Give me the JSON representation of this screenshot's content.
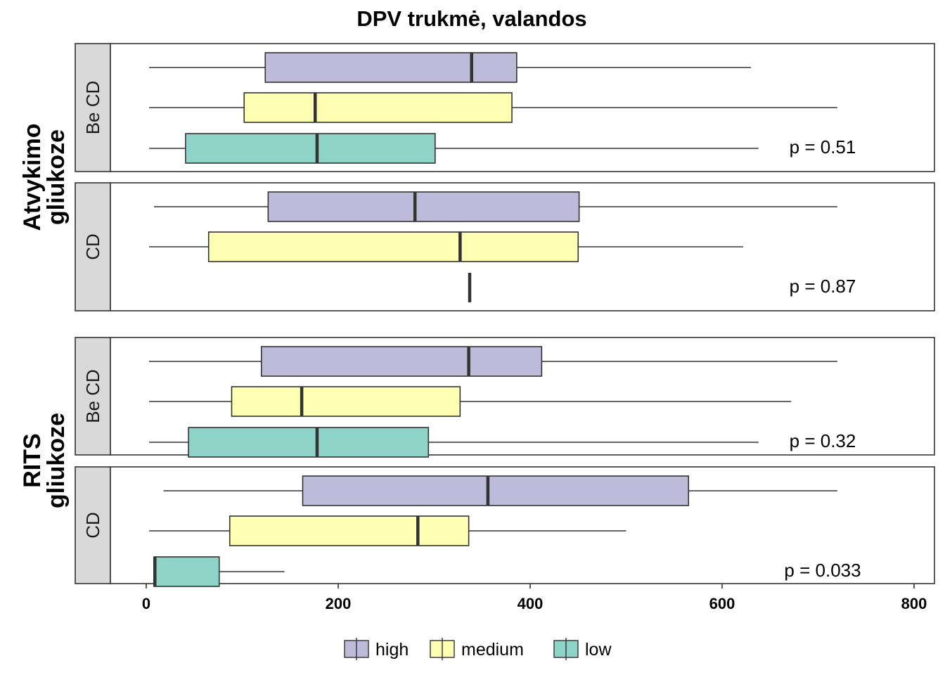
{
  "chart_data": {
    "type": "boxplot",
    "orientation": "horizontal",
    "title": "DPV trukmė, valandos",
    "x_ticks": [
      0,
      200,
      400,
      600,
      800
    ],
    "xlim": [
      -75,
      820
    ],
    "colors": {
      "high": "#BEBADA",
      "medium": "#FFFFB3",
      "low": "#8DD3C7"
    },
    "legend": {
      "position": "bottom",
      "entries": [
        {
          "key": "high",
          "label": "high"
        },
        {
          "key": "medium",
          "label": "medium"
        },
        {
          "key": "low",
          "label": "low"
        }
      ]
    },
    "groups": [
      {
        "label_lines": [
          "Atvykimo",
          "gliukoze"
        ],
        "panels": [
          {
            "strip": "Be CD",
            "p_value": "p = 0.51",
            "boxes": [
              {
                "series": "high",
                "whisker_low": 3,
                "q1": 124,
                "median": 339,
                "q3": 386,
                "whisker_high": 630
              },
              {
                "series": "medium",
                "whisker_low": 3,
                "q1": 102,
                "median": 176,
                "q3": 381,
                "whisker_high": 720
              },
              {
                "series": "low",
                "whisker_low": 3,
                "q1": 41,
                "median": 178,
                "q3": 301,
                "whisker_high": 638
              }
            ]
          },
          {
            "strip": "CD",
            "p_value": "p = 0.87",
            "boxes": [
              {
                "series": "high",
                "whisker_low": 8,
                "q1": 127,
                "median": 280,
                "q3": 451,
                "whisker_high": 720
              },
              {
                "series": "medium",
                "whisker_low": 3,
                "q1": 65,
                "median": 327,
                "q3": 450,
                "whisker_high": 622
              },
              {
                "series": "low",
                "whisker_low": 337,
                "q1": 337,
                "median": 337,
                "q3": 337,
                "whisker_high": 337
              }
            ]
          }
        ]
      },
      {
        "label_lines": [
          "RITS",
          "gliukoze"
        ],
        "panels": [
          {
            "strip": "Be CD",
            "p_value": "p = 0.32",
            "boxes": [
              {
                "series": "high",
                "whisker_low": 3,
                "q1": 120,
                "median": 336,
                "q3": 412,
                "whisker_high": 720
              },
              {
                "series": "medium",
                "whisker_low": 3,
                "q1": 89,
                "median": 162,
                "q3": 327,
                "whisker_high": 672
              },
              {
                "series": "low",
                "whisker_low": 3,
                "q1": 44,
                "median": 178,
                "q3": 294,
                "whisker_high": 638
              }
            ]
          },
          {
            "strip": "CD",
            "p_value": "p = 0.033",
            "boxes": [
              {
                "series": "high",
                "whisker_low": 18,
                "q1": 163,
                "median": 356,
                "q3": 565,
                "whisker_high": 720
              },
              {
                "series": "medium",
                "whisker_low": 3,
                "q1": 87,
                "median": 283,
                "q3": 336,
                "whisker_high": 500
              },
              {
                "series": "low",
                "whisker_low": 8,
                "q1": 8,
                "median": 9,
                "q3": 76,
                "whisker_high": 144
              }
            ]
          }
        ]
      }
    ]
  }
}
